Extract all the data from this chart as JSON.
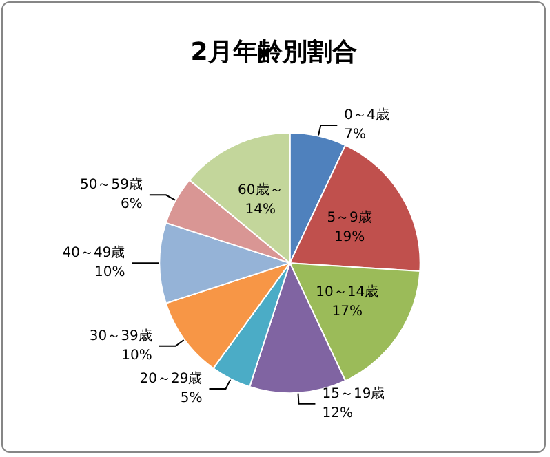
{
  "chart_data": {
    "type": "pie",
    "title": "2月年齢別割合",
    "categories": [
      "0～4歳",
      "5～9歳",
      "10～14歳",
      "15～19歳",
      "20～29歳",
      "30～39歳",
      "40～49歳",
      "50～59歳",
      "60歳～"
    ],
    "values": [
      7,
      19,
      17,
      12,
      5,
      10,
      10,
      6,
      14
    ],
    "value_labels": [
      "7%",
      "19%",
      "17%",
      "12%",
      "5%",
      "10%",
      "10%",
      "6%",
      "14%"
    ],
    "colors": [
      "#4f81bd",
      "#c0504d",
      "#9bbb59",
      "#8064a2",
      "#4bacc6",
      "#f79646",
      "#95b3d7",
      "#d99694",
      "#c3d69b"
    ],
    "legend": false
  }
}
